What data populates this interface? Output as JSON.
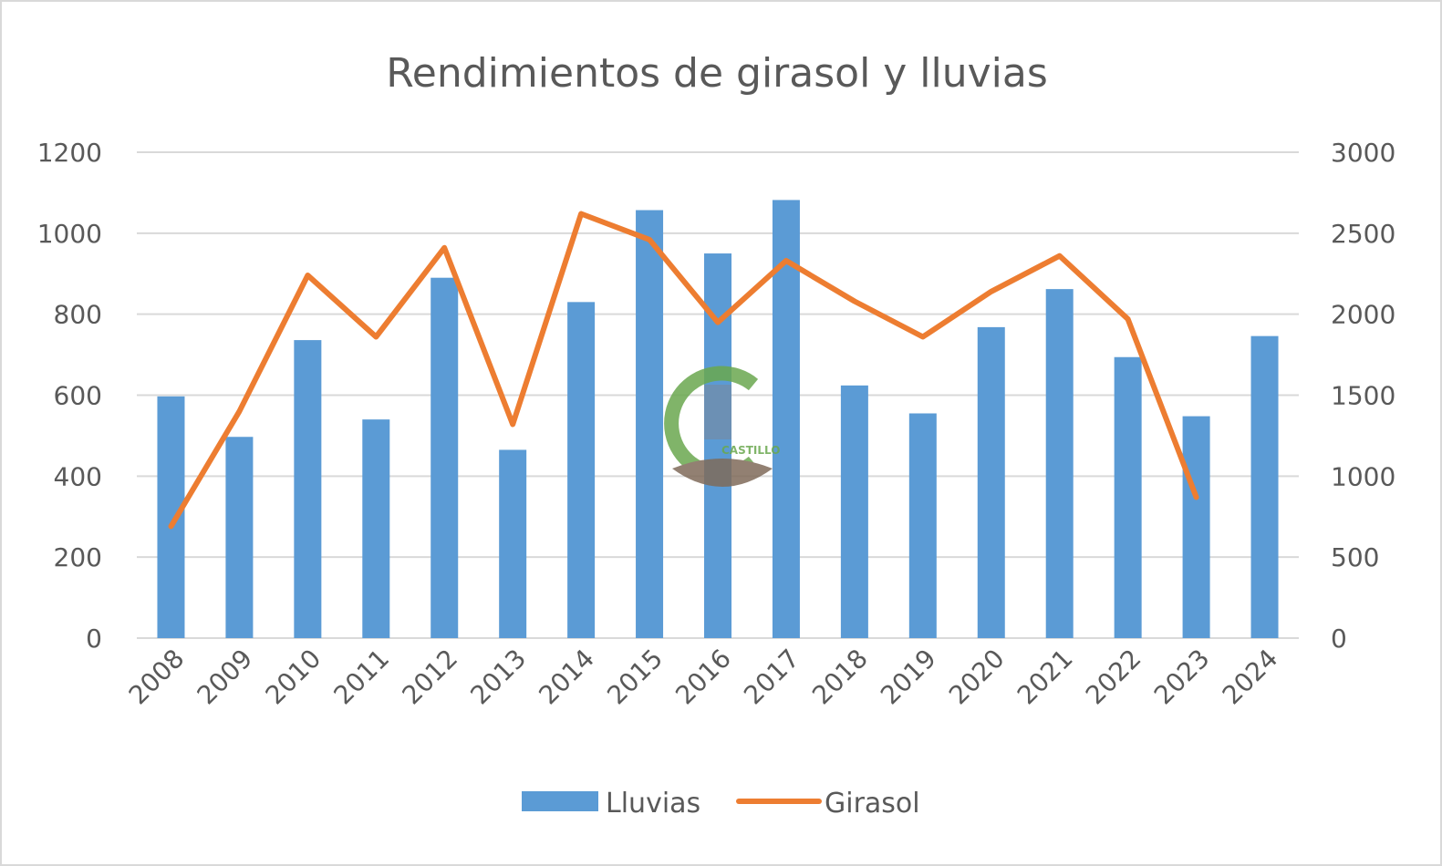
{
  "chart_data": {
    "type": "bar",
    "title": "Rendimientos de girasol y lluvias",
    "categories": [
      "2008",
      "2009",
      "2010",
      "2011",
      "2012",
      "2013",
      "2014",
      "2015",
      "2016",
      "2017",
      "2018",
      "2019",
      "2020",
      "2021",
      "2022",
      "2023",
      "2024"
    ],
    "series": [
      {
        "name": "Lluvias",
        "type": "bar",
        "axis": "left",
        "color": "#5b9bd5",
        "values": [
          597,
          497,
          736,
          540,
          890,
          465,
          830,
          1057,
          950,
          1082,
          624,
          555,
          768,
          862,
          694,
          548,
          746
        ]
      },
      {
        "name": "Girasol",
        "type": "line",
        "axis": "right",
        "color": "#ed7d31",
        "values": [
          690,
          1400,
          2240,
          1860,
          2410,
          1320,
          2620,
          2460,
          1950,
          2330,
          2080,
          1860,
          2140,
          2360,
          1970,
          870,
          null
        ]
      }
    ],
    "y_left": {
      "min": 0,
      "max": 1200,
      "ticks": [
        0,
        200,
        400,
        600,
        800,
        1000,
        1200
      ]
    },
    "y_right": {
      "min": 0,
      "max": 3000,
      "ticks": [
        0,
        500,
        1000,
        1500,
        2000,
        2500,
        3000
      ]
    },
    "grid": true,
    "legend_position": "bottom"
  },
  "watermark": {
    "text": "CASTILLO"
  }
}
